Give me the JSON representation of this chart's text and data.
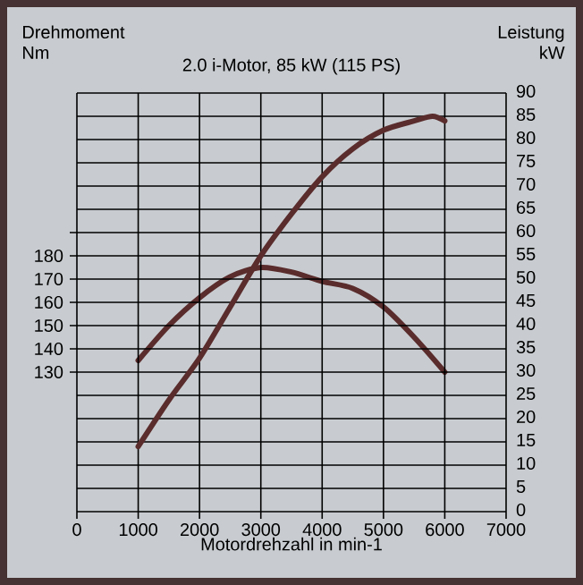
{
  "chart_data": {
    "type": "line",
    "title": "2.0 i-Motor, 85 kW (115 PS)",
    "xlabel": "Motordrehzahl in min-1",
    "ylabel": "Drehmoment Nm",
    "y2label": "Leistung kW",
    "x": [
      1000,
      1500,
      2000,
      2500,
      3000,
      3500,
      4000,
      4500,
      5000,
      5500,
      6000
    ],
    "series": [
      {
        "color": "#5a2c2c",
        "values": [
          135,
          150,
          162,
          171,
          175,
          173,
          169,
          166,
          158,
          145,
          130
        ]
      },
      {
        "color": "#5a2c2c",
        "axis": "y2",
        "x": [
          1000,
          1500,
          2000,
          2500,
          3000,
          3500,
          4000,
          4500,
          5000,
          5500,
          5800,
          6000
        ],
        "values": [
          14,
          24,
          33,
          44,
          55,
          64,
          72,
          78,
          82,
          84,
          85,
          84
        ]
      }
    ],
    "xlim": [
      0,
      7000
    ],
    "xticks": [
      0,
      1000,
      2000,
      3000,
      4000,
      5000,
      6000,
      7000
    ],
    "ylim": [
      70,
      250
    ],
    "yticks": [
      130,
      140,
      150,
      160,
      170,
      180,
      {
        "value": 190,
        "label": null
      }
    ],
    "y2lim": [
      0,
      90
    ],
    "y2ticks": [
      0,
      5,
      10,
      15,
      20,
      25,
      30,
      35,
      40,
      45,
      50,
      55,
      60,
      65,
      70,
      75,
      80,
      85,
      90
    ],
    "grid": true,
    "line_style": "solid",
    "marker": "none"
  }
}
